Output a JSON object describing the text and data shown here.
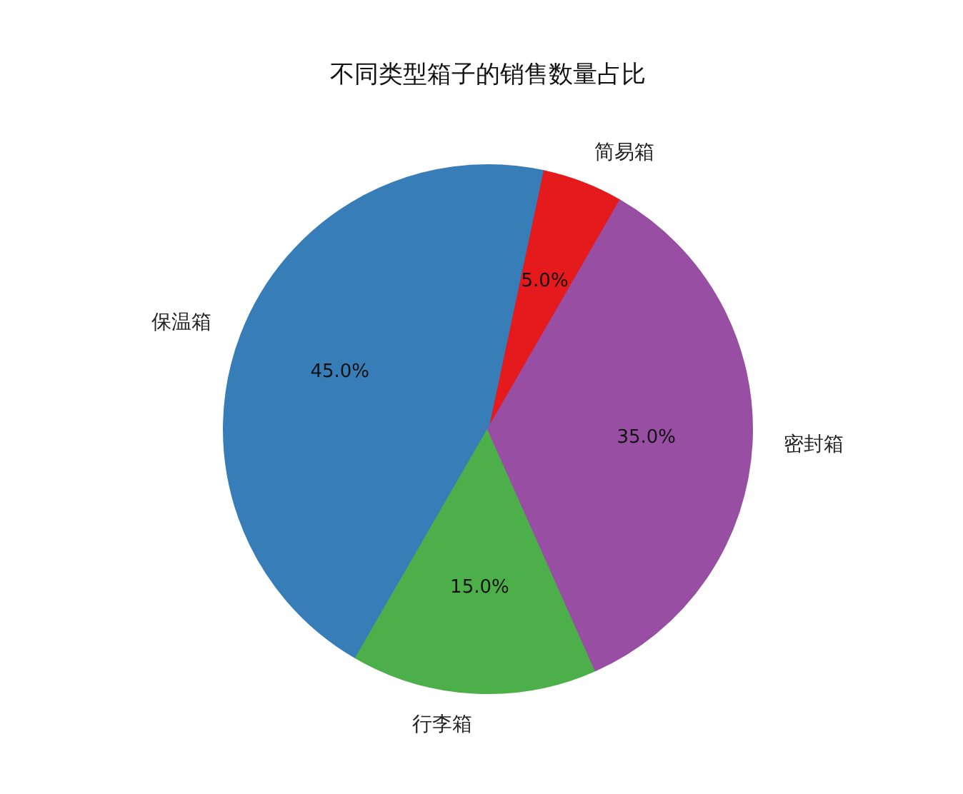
{
  "chart_data": {
    "type": "pie",
    "title": "不同类型箱子的销售数量占比",
    "categories": [
      "简易箱",
      "保温箱",
      "行李箱",
      "密封箱"
    ],
    "values": [
      5,
      45,
      15,
      35
    ],
    "colors": [
      "#e41a1c",
      "#377eb8",
      "#4daf4a",
      "#984ea3"
    ],
    "value_labels": [
      "5.0%",
      "45.0%",
      "15.0%",
      "35.0%"
    ]
  }
}
